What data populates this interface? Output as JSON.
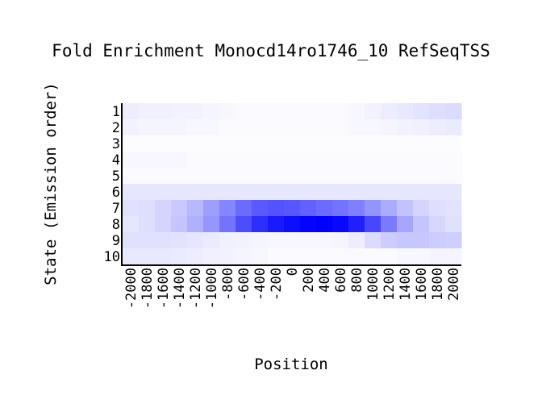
{
  "chart_data": {
    "type": "heatmap",
    "title": "Fold Enrichment Monocd14ro1746_10 RefSeqTSS",
    "xlabel": "Position",
    "ylabel": "State (Emission order)",
    "x": [
      -2000,
      -1800,
      -1600,
      -1400,
      -1200,
      -1000,
      -800,
      -600,
      -400,
      -200,
      0,
      200,
      400,
      600,
      800,
      1000,
      1200,
      1400,
      1600,
      1800,
      2000
    ],
    "x_tick_labels": [
      "-2000",
      "-1800",
      "-1600",
      "-1400",
      "-1200",
      "-1000",
      "-800",
      "-600",
      "-400",
      "-200",
      "0",
      "200",
      "400",
      "600",
      "800",
      "1000",
      "1200",
      "1400",
      "1600",
      "1800",
      "2000"
    ],
    "y": [
      "1",
      "2",
      "3",
      "4",
      "5",
      "6",
      "7",
      "8",
      "9",
      "10"
    ],
    "color_low": "#ffffff",
    "color_high": "#0000ff",
    "values": [
      [
        0.07,
        0.06,
        0.06,
        0.05,
        0.05,
        0.04,
        0.03,
        0.02,
        0.02,
        0.02,
        0.02,
        0.02,
        0.02,
        0.02,
        0.03,
        0.05,
        0.07,
        0.09,
        0.11,
        0.13,
        0.14
      ],
      [
        0.05,
        0.04,
        0.04,
        0.04,
        0.03,
        0.03,
        0.02,
        0.02,
        0.02,
        0.02,
        0.02,
        0.02,
        0.02,
        0.02,
        0.03,
        0.03,
        0.04,
        0.05,
        0.06,
        0.07,
        0.08
      ],
      [
        0.01,
        0.01,
        0.01,
        0.01,
        0.01,
        0.01,
        0.01,
        0.01,
        0.01,
        0.01,
        0.01,
        0.01,
        0.01,
        0.01,
        0.01,
        0.01,
        0.01,
        0.01,
        0.01,
        0.01,
        0.01
      ],
      [
        0.03,
        0.03,
        0.03,
        0.03,
        0.02,
        0.02,
        0.02,
        0.02,
        0.02,
        0.02,
        0.02,
        0.02,
        0.02,
        0.02,
        0.02,
        0.02,
        0.02,
        0.02,
        0.02,
        0.02,
        0.02
      ],
      [
        0.02,
        0.02,
        0.02,
        0.02,
        0.02,
        0.02,
        0.02,
        0.02,
        0.02,
        0.02,
        0.02,
        0.02,
        0.02,
        0.02,
        0.02,
        0.02,
        0.02,
        0.02,
        0.02,
        0.02,
        0.02
      ],
      [
        0.1,
        0.1,
        0.1,
        0.1,
        0.1,
        0.1,
        0.1,
        0.1,
        0.1,
        0.1,
        0.1,
        0.1,
        0.1,
        0.1,
        0.1,
        0.1,
        0.1,
        0.1,
        0.1,
        0.1,
        0.1
      ],
      [
        0.12,
        0.13,
        0.17,
        0.21,
        0.28,
        0.38,
        0.48,
        0.58,
        0.65,
        0.68,
        0.66,
        0.62,
        0.58,
        0.55,
        0.5,
        0.42,
        0.33,
        0.24,
        0.17,
        0.13,
        0.11
      ],
      [
        0.1,
        0.13,
        0.17,
        0.23,
        0.31,
        0.41,
        0.55,
        0.7,
        0.82,
        0.9,
        0.95,
        0.99,
        1.0,
        0.97,
        0.88,
        0.72,
        0.52,
        0.35,
        0.23,
        0.16,
        0.12
      ],
      [
        0.12,
        0.12,
        0.12,
        0.11,
        0.1,
        0.08,
        0.06,
        0.05,
        0.04,
        0.03,
        0.03,
        0.03,
        0.03,
        0.04,
        0.07,
        0.14,
        0.2,
        0.22,
        0.22,
        0.2,
        0.19
      ],
      [
        0.09,
        0.09,
        0.09,
        0.08,
        0.07,
        0.06,
        0.05,
        0.04,
        0.03,
        0.02,
        0.02,
        0.02,
        0.02,
        0.02,
        0.02,
        0.02,
        0.02,
        0.03,
        0.03,
        0.04,
        0.04
      ]
    ]
  }
}
